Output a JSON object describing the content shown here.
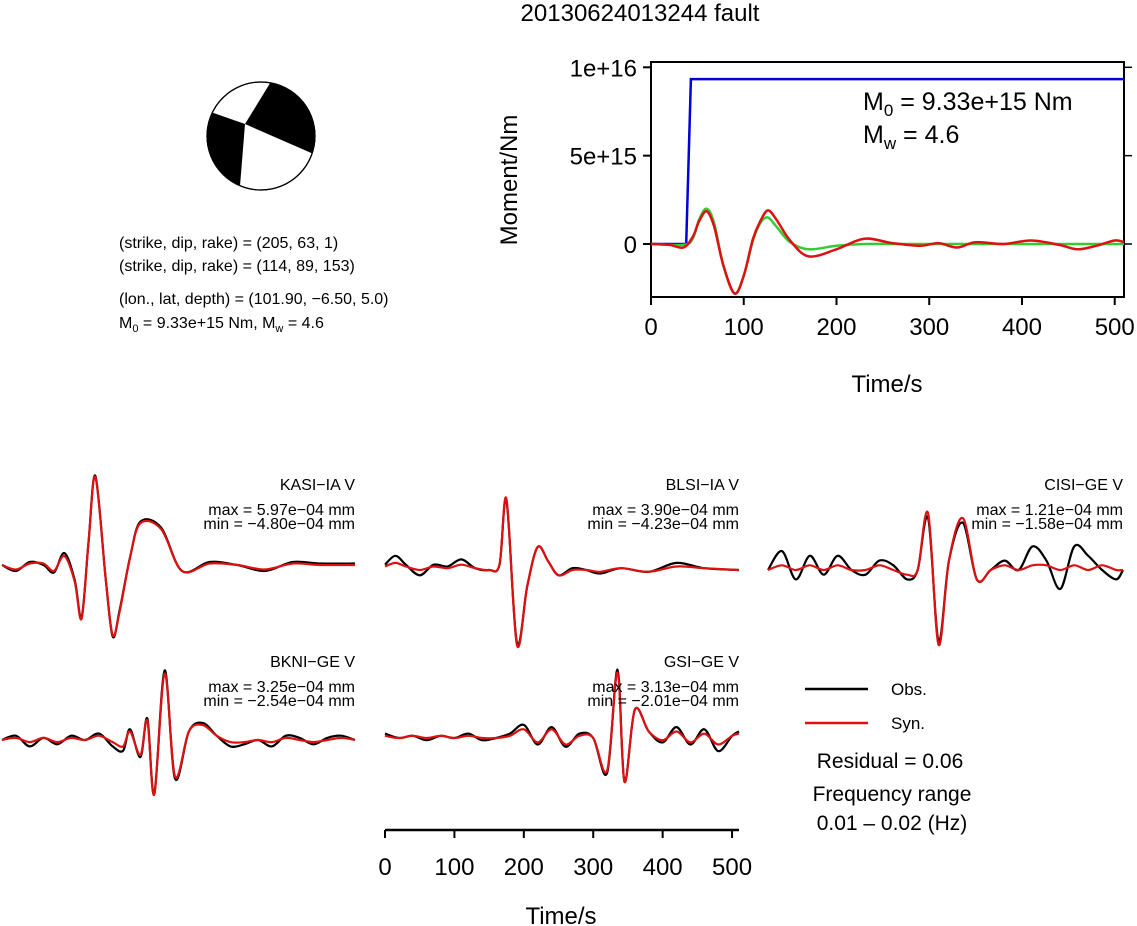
{
  "title": "20130624013244 fault",
  "info": {
    "line1": "(strike, dip, rake) = (205, 63, 1)",
    "line2": "(strike, dip, rake) = (114, 89, 153)",
    "line3": "(lon., lat, depth) = (101.90, −6.50, 5.0)",
    "m0_label": "M",
    "m0_sub": "0",
    "line4_rest": " = 9.33e+15 Nm, M",
    "mw_sub": "w",
    "line4_end": " = 4.6"
  },
  "moment_box": {
    "m0_label": "M",
    "m0_sub": "0",
    "m0_value": " = 9.33e+15 Nm",
    "mw_label": "M",
    "mw_sub": "w",
    "mw_value": " = 4.6"
  },
  "legend": {
    "obs": "Obs.",
    "syn": "Syn.",
    "residual": "Residual = 0.06",
    "freq_title": "Frequency range",
    "freq_value": "0.01 – 0.02 (Hz)"
  },
  "colors": {
    "observed": "#000000",
    "synthetic": "#dd1111",
    "moment": "#0000dd",
    "source_time": "#33cc33",
    "beachball_fill": "#000000"
  },
  "chart_data": [
    {
      "type": "line",
      "title": "",
      "xlabel": "Time/s",
      "ylabel": "Moment/Nm",
      "xlim": [
        0,
        510
      ],
      "ylim": [
        -3000000000000000.0,
        1.03e+16
      ],
      "xticks": [
        0,
        100,
        200,
        300,
        400,
        500
      ],
      "xtick_labels": [
        "0",
        "100",
        "200",
        "300",
        "400",
        "500"
      ],
      "yticks": [
        0,
        5000000000000000.0,
        1e+16
      ],
      "ytick_labels": [
        "0",
        "5e+15",
        "1e+16"
      ],
      "series": [
        {
          "name": "",
          "color": "#0000dd",
          "x": [
            0,
            38,
            43,
            510
          ],
          "y": [
            0,
            0,
            9330000000000000.0,
            9330000000000000.0
          ]
        },
        {
          "name": "",
          "color": "#33cc33",
          "x": [
            0,
            35,
            45,
            52,
            60,
            68,
            78,
            90,
            100,
            110,
            118,
            126,
            135,
            150,
            170,
            200,
            230,
            260,
            300,
            350,
            400,
            450,
            510
          ],
          "y": [
            0,
            -50000000000000.0,
            300000000000000.0,
            1400000000000000.0,
            2000000000000000.0,
            1200000000000000.0,
            -1200000000000000.0,
            -2800000000000000.0,
            -1800000000000000.0,
            200000000000000.0,
            1200000000000000.0,
            1500000000000000.0,
            1000000000000000.0,
            100000000000000.0,
            -300000000000000.0,
            -100000000000000.0,
            0,
            0,
            0,
            0,
            0,
            0,
            0
          ]
        },
        {
          "name": "",
          "color": "#dd1111",
          "x": [
            0,
            20,
            35,
            45,
            52,
            60,
            68,
            78,
            90,
            100,
            110,
            118,
            126,
            135,
            150,
            170,
            200,
            230,
            260,
            290,
            310,
            330,
            350,
            380,
            410,
            440,
            460,
            480,
            500,
            510
          ],
          "y": [
            0,
            -50000000000000.0,
            -200000000000000.0,
            400000000000000.0,
            1300000000000000.0,
            1850000000000000.0,
            1000000000000000.0,
            -1200000000000000.0,
            -2800000000000000.0,
            -1800000000000000.0,
            300000000000000.0,
            1300000000000000.0,
            1900000000000000.0,
            1400000000000000.0,
            200000000000000.0,
            -700000000000000.0,
            -300000000000000.0,
            300000000000000.0,
            50000000000000.0,
            -100000000000000.0,
            50000000000000.0,
            -200000000000000.0,
            100000000000000.0,
            0.0,
            200000000000000.0,
            -50000000000000.0,
            -300000000000000.0,
            -100000000000000.0,
            200000000000000.0,
            100000000000000.0
          ]
        }
      ]
    },
    {
      "type": "line",
      "title": "KASI−IA V",
      "max": "max = 5.97e−04 mm",
      "min": "min = −4.80e−04 mm",
      "xlim": [
        0,
        510
      ],
      "ylim": [
        -5.5,
        6.3
      ],
      "series": [
        {
          "name": "Obs.",
          "x": [
            0,
            20,
            40,
            60,
            75,
            90,
            105,
            115,
            125,
            135,
            150,
            160,
            170,
            185,
            200,
            230,
            260,
            300,
            340,
            380,
            420,
            460,
            510
          ],
          "y": [
            0,
            -0.4,
            0.2,
            0.0,
            -0.5,
            0.8,
            -1.0,
            -3.5,
            1.5,
            5.97,
            -1.0,
            -4.8,
            -3.0,
            0.5,
            2.9,
            2.5,
            -0.4,
            0.2,
            0.0,
            -0.4,
            0.2,
            0.1,
            0.1
          ]
        },
        {
          "name": "Syn.",
          "x": [
            0,
            20,
            40,
            60,
            75,
            90,
            105,
            115,
            125,
            135,
            150,
            160,
            170,
            185,
            200,
            230,
            260,
            300,
            340,
            380,
            420,
            460,
            510
          ],
          "y": [
            0,
            -0.3,
            0.1,
            0.1,
            -0.4,
            0.6,
            -1.1,
            -3.6,
            1.5,
            5.9,
            -1.0,
            -4.7,
            -3.1,
            0.5,
            2.8,
            2.4,
            -0.4,
            0.1,
            0.0,
            -0.3,
            0.1,
            0.0,
            0.0
          ]
        }
      ]
    },
    {
      "type": "line",
      "title": "BLSI−IA V",
      "max": "max = 3.90e−04 mm",
      "min": "min = −4.23e−04 mm",
      "xlim": [
        0,
        510
      ],
      "ylim": [
        -5.0,
        5.2
      ],
      "series": [
        {
          "name": "Obs.",
          "x": [
            0,
            15,
            30,
            50,
            70,
            90,
            110,
            130,
            150,
            165,
            175,
            190,
            205,
            220,
            235,
            250,
            270,
            290,
            310,
            340,
            380,
            420,
            460,
            510
          ],
          "y": [
            0.3,
            0.8,
            0.3,
            -0.3,
            0.3,
            0.2,
            0.6,
            0.1,
            0.0,
            0.3,
            3.9,
            -4.1,
            -0.9,
            1.3,
            0.5,
            -0.3,
            0.1,
            0.0,
            -0.2,
            0.1,
            -0.1,
            0.4,
            0.1,
            0.0
          ]
        },
        {
          "name": "Syn.",
          "x": [
            0,
            15,
            30,
            50,
            70,
            90,
            110,
            130,
            150,
            165,
            175,
            190,
            205,
            220,
            235,
            250,
            270,
            290,
            310,
            340,
            380,
            420,
            460,
            510
          ],
          "y": [
            0.2,
            0.4,
            0.2,
            0.0,
            0.2,
            0.1,
            0.3,
            0.1,
            0.0,
            0.3,
            4.0,
            -4.23,
            -0.9,
            1.3,
            0.5,
            -0.3,
            0.0,
            0.0,
            -0.1,
            0.1,
            -0.1,
            0.2,
            0.1,
            0.0
          ]
        }
      ]
    },
    {
      "type": "line",
      "title": "CISI−GE V",
      "max": "max = 1.21e−04 mm",
      "min": "min = −1.58e−04 mm",
      "xlim": [
        0,
        510
      ],
      "ylim": [
        -1.8,
        1.45
      ],
      "series": [
        {
          "name": "Obs.",
          "x": [
            0,
            20,
            40,
            60,
            80,
            100,
            120,
            140,
            160,
            180,
            200,
            215,
            230,
            245,
            260,
            280,
            300,
            320,
            340,
            360,
            380,
            400,
            420,
            440,
            460,
            480,
            500,
            510
          ],
          "y": [
            0,
            0.4,
            -0.2,
            0.3,
            -0.1,
            0.3,
            0.0,
            -0.1,
            0.2,
            0.1,
            -0.2,
            0.0,
            1.1,
            -1.5,
            0.2,
            1.0,
            -0.2,
            0.0,
            0.2,
            0.0,
            0.5,
            0.2,
            -0.4,
            0.5,
            0.3,
            0.0,
            -0.2,
            0.0
          ]
        },
        {
          "name": "Syn.",
          "x": [
            0,
            20,
            40,
            60,
            80,
            100,
            120,
            140,
            160,
            180,
            200,
            215,
            230,
            245,
            260,
            280,
            300,
            320,
            340,
            360,
            380,
            400,
            420,
            440,
            460,
            480,
            500,
            510
          ],
          "y": [
            0,
            0.1,
            0.0,
            0.1,
            0.0,
            0.1,
            0.0,
            0.0,
            0.1,
            0.0,
            -0.1,
            0.0,
            1.2,
            -1.58,
            0.2,
            1.1,
            -0.2,
            0.0,
            0.1,
            0.0,
            0.1,
            0.1,
            0.0,
            0.1,
            0.0,
            0.1,
            0.0,
            0.0
          ]
        }
      ]
    },
    {
      "type": "line",
      "title": "BKNI−GE V",
      "max": "max = 3.25e−04 mm",
      "min": "min = −2.54e−04 mm",
      "xlim": [
        0,
        510
      ],
      "ylim": [
        -2.9,
        3.5
      ],
      "series": [
        {
          "name": "Obs.",
          "x": [
            0,
            20,
            40,
            60,
            80,
            100,
            120,
            140,
            160,
            175,
            185,
            200,
            210,
            220,
            235,
            250,
            270,
            290,
            310,
            330,
            350,
            370,
            390,
            410,
            430,
            450,
            470,
            490,
            510
          ],
          "y": [
            0,
            0.2,
            -0.3,
            0.1,
            -0.2,
            0.2,
            0.0,
            0.3,
            -0.3,
            -0.5,
            0.5,
            -0.8,
            1.0,
            -2.5,
            3.25,
            -1.8,
            0.4,
            0.8,
            0.2,
            -0.3,
            -0.2,
            0.0,
            -0.3,
            0.2,
            0.1,
            -0.2,
            0.1,
            0.2,
            0.0
          ]
        },
        {
          "name": "Syn.",
          "x": [
            0,
            20,
            40,
            60,
            80,
            100,
            120,
            140,
            160,
            175,
            185,
            200,
            210,
            220,
            235,
            250,
            270,
            290,
            310,
            330,
            350,
            370,
            390,
            410,
            430,
            450,
            470,
            490,
            510
          ],
          "y": [
            0,
            0.1,
            -0.1,
            0.1,
            -0.1,
            0.1,
            0.0,
            0.2,
            -0.1,
            -0.3,
            0.4,
            -0.7,
            0.9,
            -2.54,
            3.1,
            -1.7,
            0.4,
            0.7,
            0.2,
            -0.1,
            -0.1,
            0.0,
            -0.1,
            0.1,
            0.0,
            -0.1,
            0.0,
            0.1,
            0.0
          ]
        }
      ]
    },
    {
      "type": "line",
      "title": "GSI−GE V",
      "max": "max = 3.13e−04 mm",
      "min": "min = −2.01e−04 mm",
      "xlim": [
        0,
        510
      ],
      "ylim": [
        -2.3,
        3.3
      ],
      "series": [
        {
          "name": "Obs.",
          "x": [
            0,
            20,
            40,
            60,
            80,
            100,
            120,
            140,
            160,
            180,
            200,
            220,
            240,
            260,
            280,
            300,
            320,
            335,
            345,
            360,
            380,
            400,
            420,
            440,
            460,
            480,
            500,
            510
          ],
          "y": [
            0.2,
            0.0,
            0.1,
            -0.1,
            0.1,
            0.0,
            0.2,
            -0.1,
            0.0,
            0.2,
            0.6,
            -0.3,
            0.5,
            -0.4,
            0.2,
            0.0,
            -1.6,
            3.13,
            -2.0,
            1.3,
            0.3,
            -0.2,
            0.5,
            -0.3,
            0.4,
            -0.6,
            0.1,
            0.3
          ]
        },
        {
          "name": "Syn.",
          "x": [
            0,
            20,
            40,
            60,
            80,
            100,
            120,
            140,
            160,
            180,
            200,
            220,
            240,
            260,
            280,
            300,
            320,
            335,
            345,
            360,
            380,
            400,
            420,
            440,
            460,
            480,
            500,
            510
          ],
          "y": [
            0.1,
            0.0,
            0.1,
            0.0,
            0.1,
            0.0,
            0.1,
            0.0,
            0.0,
            0.1,
            0.4,
            -0.2,
            0.4,
            -0.3,
            0.1,
            0.0,
            -1.5,
            3.0,
            -2.01,
            1.3,
            0.3,
            -0.1,
            0.3,
            -0.2,
            0.2,
            -0.3,
            0.1,
            0.2
          ]
        }
      ]
    },
    {
      "type": "line",
      "xlabel": "Time/s",
      "xlim": [
        0,
        510
      ],
      "xticks": [
        0,
        100,
        200,
        300,
        400,
        500
      ],
      "xtick_labels": [
        "0",
        "100",
        "200",
        "300",
        "400",
        "500"
      ]
    }
  ]
}
